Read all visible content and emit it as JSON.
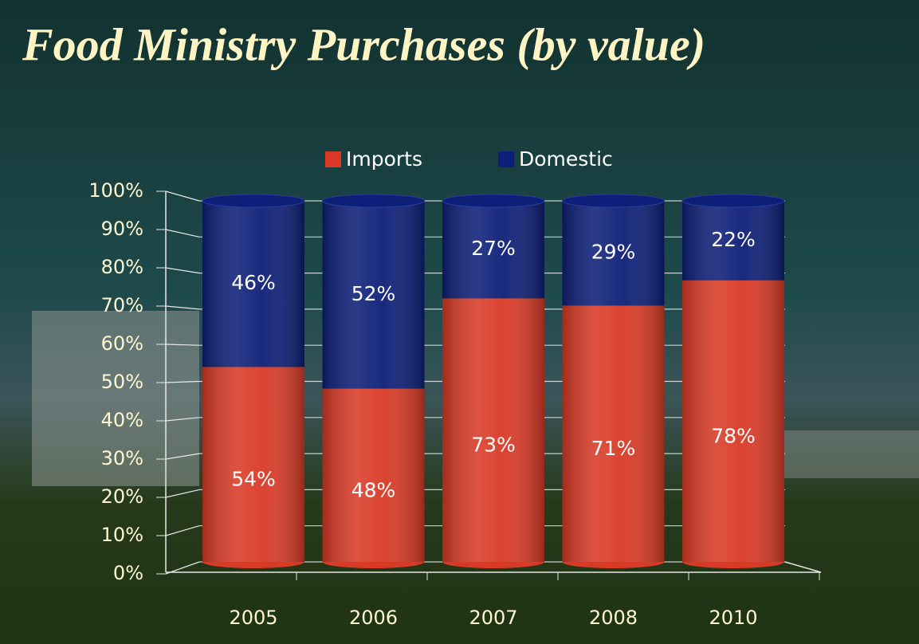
{
  "chart_data": {
    "type": "stacked_bar_3d",
    "title": "Food Ministry Purchases (by value)",
    "categories": [
      "2005",
      "2006",
      "2007",
      "2008",
      "2010"
    ],
    "series": [
      {
        "name": "Imports",
        "color": "#d93a26",
        "values": [
          54,
          48,
          73,
          71,
          78
        ],
        "value_labels": [
          "54%",
          "48%",
          "73%",
          "71%",
          "78%"
        ]
      },
      {
        "name": "Domestic",
        "color": "#0d1f78",
        "values": [
          46,
          52,
          27,
          29,
          22
        ],
        "value_labels": [
          "46%",
          "52%",
          "27%",
          "29%",
          "22%"
        ]
      }
    ],
    "ylim": [
      0,
      100
    ],
    "yticks": [
      {
        "value": 0,
        "label": "0%"
      },
      {
        "value": 10,
        "label": "10%"
      },
      {
        "value": 20,
        "label": "20%"
      },
      {
        "value": 30,
        "label": "30%"
      },
      {
        "value": 40,
        "label": "40%"
      },
      {
        "value": 50,
        "label": "50%"
      },
      {
        "value": 60,
        "label": "60%"
      },
      {
        "value": 70,
        "label": "70%"
      },
      {
        "value": 80,
        "label": "80%"
      },
      {
        "value": 90,
        "label": "90%"
      },
      {
        "value": 100,
        "label": "100%"
      }
    ],
    "grid": true,
    "legend": "top"
  }
}
